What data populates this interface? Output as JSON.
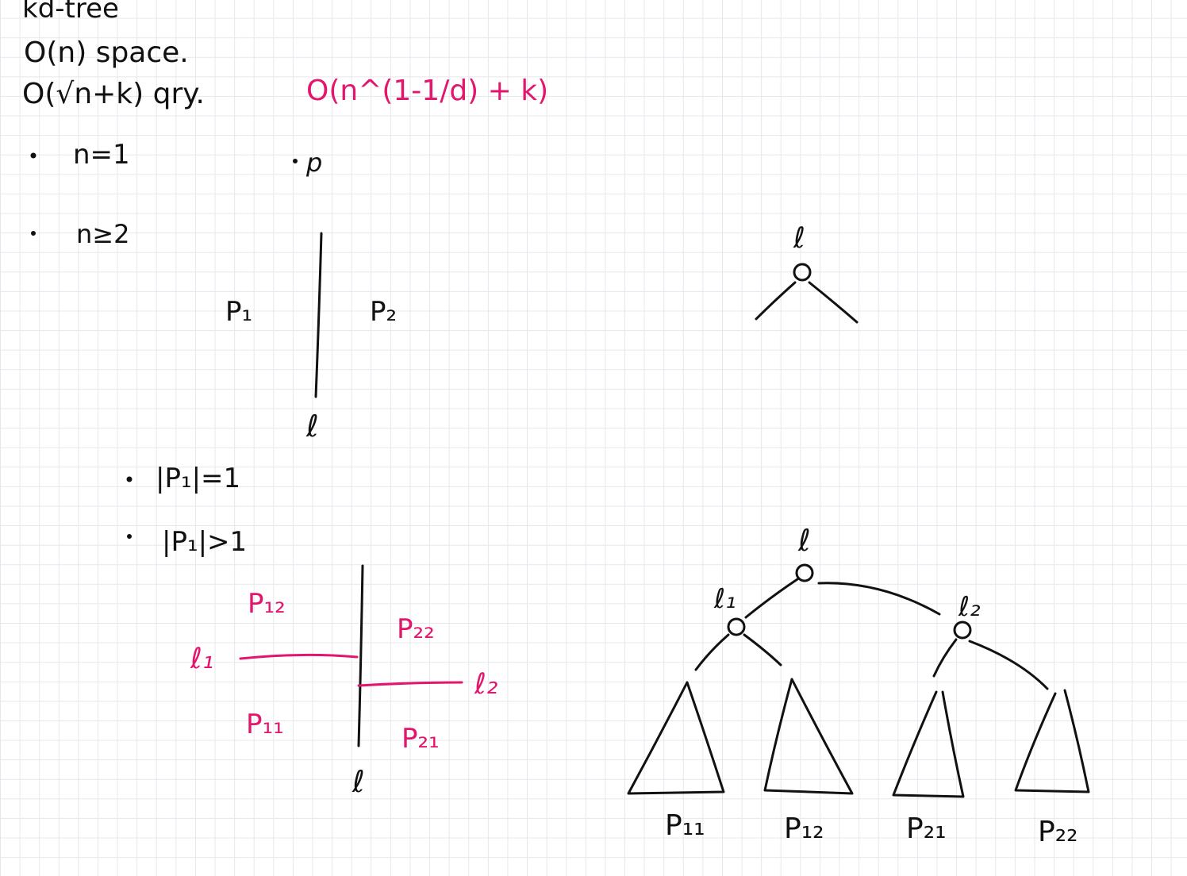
{
  "colors": {
    "ink": "#111111",
    "accent": "#e3166e",
    "grid": "#e4e8ee",
    "paper": "#ffffff"
  },
  "notes": {
    "title": "kd-tree",
    "space": "O(n) space.",
    "query": "O(√n+k) qry.",
    "query_general": "O(n^(1-1/d) + k)",
    "bullet_n1": "n=1",
    "point_label": "p",
    "bullet_n2": "n≥2",
    "bullet_p1_eq": "|P₁|=1",
    "bullet_p1_gt": "|P₁|>1"
  },
  "split_diagram": {
    "left_set": "P₁",
    "right_set": "P₂",
    "line_label": "ℓ"
  },
  "sub_split_diagram": {
    "p12": "P₁₂",
    "p22": "P₂₂",
    "p11": "P₁₁",
    "p21": "P₂₁",
    "l1": "ℓ₁",
    "l2": "ℓ₂",
    "line_label": "ℓ"
  },
  "small_tree": {
    "root_label": "ℓ"
  },
  "big_tree": {
    "root_label": "ℓ",
    "left_child_label": "ℓ₁",
    "right_child_label": "ℓ₂",
    "leaves": [
      "P₁₁",
      "P₁₂",
      "P₂₁",
      "P₂₂"
    ]
  }
}
